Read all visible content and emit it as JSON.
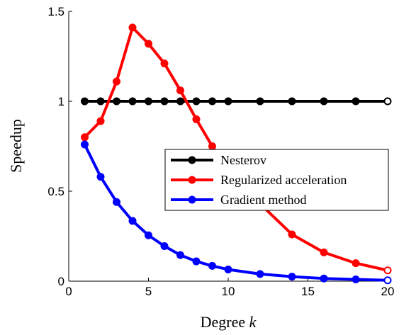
{
  "chart_data": {
    "type": "line",
    "xlabel": "Degree",
    "xlabel_var": "k",
    "ylabel": "Speedup",
    "xlim": [
      0,
      20
    ],
    "ylim": [
      0,
      1.5
    ],
    "xticks": [
      0,
      5,
      10,
      15,
      20
    ],
    "yticks": [
      0,
      0.5,
      1,
      1.5
    ],
    "xtick_labels": [
      "0",
      "5",
      "10",
      "15",
      "20"
    ],
    "ytick_labels": [
      "0",
      "0.5",
      "1",
      "1.5"
    ],
    "grid": false,
    "legend_position": "center-right",
    "series": [
      {
        "name": "Nesterov",
        "color": "#000000",
        "x": [
          1,
          2,
          3,
          4,
          5,
          6,
          7,
          8,
          9,
          10,
          12,
          14,
          16,
          18,
          20
        ],
        "y": [
          1,
          1,
          1,
          1,
          1,
          1,
          1,
          1,
          1,
          1,
          1,
          1,
          1,
          1,
          1
        ]
      },
      {
        "name": "Regularized acceleration",
        "color": "#ff0000",
        "x": [
          1,
          2,
          3,
          4,
          5,
          6,
          7,
          8,
          9,
          10,
          12,
          14,
          16,
          18,
          20
        ],
        "y": [
          0.8,
          0.89,
          1.11,
          1.41,
          1.32,
          1.21,
          1.06,
          0.9,
          0.75,
          0.62,
          0.43,
          0.26,
          0.16,
          0.1,
          0.06
        ]
      },
      {
        "name": "Gradient method",
        "color": "#0000ff",
        "x": [
          1,
          2,
          3,
          4,
          5,
          6,
          7,
          8,
          9,
          10,
          12,
          14,
          16,
          18,
          20
        ],
        "y": [
          0.76,
          0.58,
          0.44,
          0.335,
          0.255,
          0.195,
          0.145,
          0.11,
          0.085,
          0.065,
          0.04,
          0.025,
          0.015,
          0.01,
          0.005
        ]
      }
    ]
  }
}
